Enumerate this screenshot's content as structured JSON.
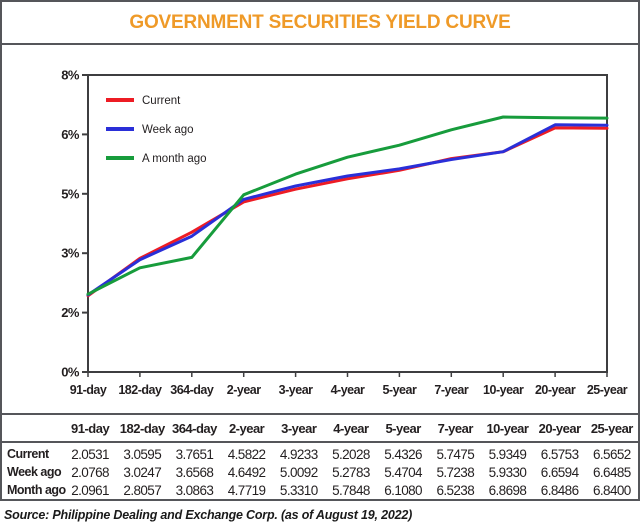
{
  "title": "GOVERNMENT SECURITIES YIELD CURVE",
  "source_note": "Source: Philippine Dealing and Exchange Corp. (as of August 19, 2022)",
  "colors": {
    "title_orange": "#ef9a28",
    "frame_gray": "#55565a",
    "axis_dark": "#3e3e40",
    "text_dark": "#231f20",
    "current_red": "#ed1c24",
    "week_blue": "#2a2fd8",
    "month_green": "#179c3c"
  },
  "chart_data": {
    "type": "line",
    "title": "GOVERNMENT SECURITIES YIELD CURVE",
    "categories": [
      "91-day",
      "182-day",
      "364-day",
      "2-year",
      "3-year",
      "4-year",
      "5-year",
      "7-year",
      "10-year",
      "20-year",
      "25-year"
    ],
    "series": [
      {
        "name": "Current",
        "legend": "Current",
        "color": "#ed1c24",
        "values": [
          2.0531,
          3.0595,
          3.7651,
          4.5822,
          4.9233,
          5.2028,
          5.4326,
          5.7475,
          5.9349,
          6.5753,
          6.5652
        ]
      },
      {
        "name": "Week ago",
        "legend": "Week ago",
        "color": "#2a2fd8",
        "values": [
          2.0768,
          3.0247,
          3.6568,
          4.6492,
          5.0092,
          5.2783,
          5.4704,
          5.7238,
          5.933,
          6.6594,
          6.6485
        ]
      },
      {
        "name": "Month ago",
        "legend": "A month ago",
        "color": "#179c3c",
        "values": [
          2.0961,
          2.8057,
          3.0863,
          4.7719,
          5.331,
          5.7848,
          6.108,
          6.5238,
          6.8698,
          6.8486,
          6.84
        ]
      }
    ],
    "xlabel": "",
    "ylabel": "",
    "ylim": [
      0,
      8
    ],
    "y_ticks": {
      "values": [
        0,
        1.6,
        3.2,
        4.8,
        6.4,
        8
      ],
      "labels": [
        "0%",
        "2%",
        "3%",
        "5%",
        "6%",
        "8%"
      ]
    },
    "grid": false,
    "legend_position": "top-left",
    "value_format_decimals": 4
  },
  "table": {
    "corner_label": "",
    "columns": [
      "91-day",
      "182-day",
      "364-day",
      "2-year",
      "3-year",
      "4-year",
      "5-year",
      "7-year",
      "10-year",
      "20-year",
      "25-year"
    ],
    "row_labels": [
      "Current",
      "Week ago",
      "Month ago"
    ]
  }
}
